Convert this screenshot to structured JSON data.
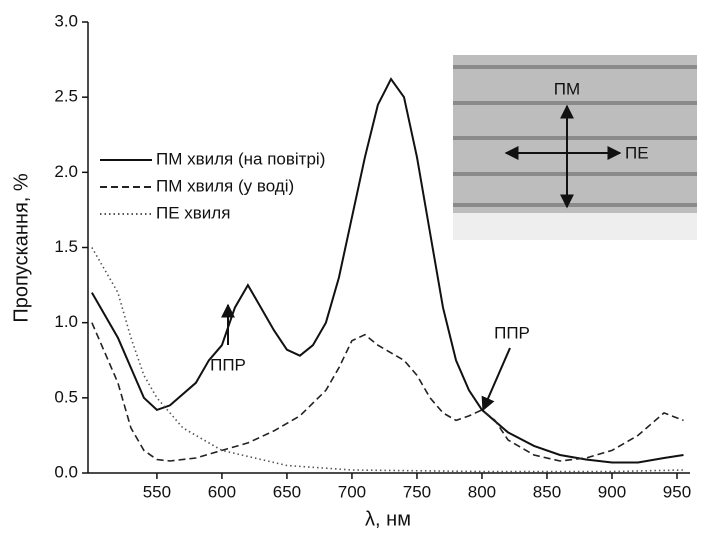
{
  "chart_data": {
    "type": "line",
    "xlabel": "λ, нм",
    "ylabel": "Пропускання, %",
    "xlim": [
      497,
      960
    ],
    "ylim": [
      0,
      3
    ],
    "xticks": [
      550,
      600,
      650,
      700,
      750,
      800,
      850,
      900,
      950
    ],
    "yticks": [
      {
        "value": 0,
        "label": "0.0"
      },
      0.5,
      {
        "value": 1,
        "label": "1.0"
      },
      1.5,
      {
        "value": 2,
        "label": "2.0"
      },
      2.5,
      {
        "value": 3,
        "label": "3.0"
      }
    ],
    "legend": "upper left",
    "series": [
      {
        "name": "ПМ хвиля (на повітрі)",
        "color": "#111111",
        "dash": "solid",
        "x": [
          500,
          520,
          540,
          550,
          560,
          580,
          590,
          600,
          610,
          620,
          630,
          640,
          650,
          660,
          670,
          680,
          690,
          700,
          710,
          720,
          730,
          740,
          750,
          760,
          770,
          780,
          790,
          800,
          820,
          840,
          860,
          880,
          900,
          920,
          940,
          955
        ],
        "values": [
          1.2,
          0.9,
          0.5,
          0.42,
          0.45,
          0.6,
          0.75,
          0.85,
          1.1,
          1.25,
          1.1,
          0.95,
          0.82,
          0.78,
          0.85,
          1.0,
          1.3,
          1.7,
          2.1,
          2.45,
          2.62,
          2.5,
          2.1,
          1.6,
          1.1,
          0.75,
          0.55,
          0.42,
          0.27,
          0.18,
          0.12,
          0.09,
          0.07,
          0.07,
          0.1,
          0.12
        ]
      },
      {
        "name": "ПМ хвиля (у воді)",
        "color": "#222222",
        "dash": "dashed",
        "x": [
          500,
          520,
          530,
          540,
          550,
          560,
          580,
          600,
          620,
          640,
          660,
          680,
          690,
          700,
          710,
          720,
          740,
          750,
          760,
          770,
          780,
          790,
          800,
          810,
          820,
          840,
          860,
          880,
          900,
          920,
          940,
          955
        ],
        "values": [
          1.0,
          0.6,
          0.3,
          0.15,
          0.09,
          0.08,
          0.1,
          0.15,
          0.2,
          0.28,
          0.38,
          0.55,
          0.7,
          0.88,
          0.92,
          0.85,
          0.75,
          0.65,
          0.5,
          0.4,
          0.35,
          0.38,
          0.42,
          0.35,
          0.22,
          0.12,
          0.08,
          0.1,
          0.15,
          0.25,
          0.4,
          0.35
        ]
      },
      {
        "name": "ПЕ хвиля",
        "color": "#555555",
        "dash": "dotted",
        "x": [
          500,
          520,
          530,
          540,
          550,
          570,
          600,
          650,
          700,
          800,
          900,
          955
        ],
        "values": [
          1.5,
          1.2,
          0.9,
          0.65,
          0.5,
          0.3,
          0.15,
          0.05,
          0.02,
          0.01,
          0.01,
          0.02
        ]
      }
    ],
    "annotations": [
      "ППР",
      "ППР"
    ],
    "inset_labels": [
      "ПМ",
      "ПЕ"
    ]
  }
}
